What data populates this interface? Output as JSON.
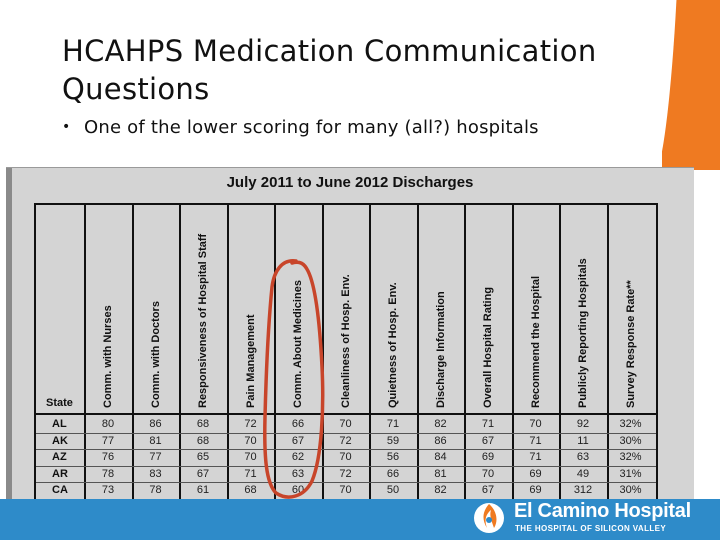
{
  "slide": {
    "title": "HCAHPS Medication Communication Questions",
    "bullet": "One of the lower scoring for many (all?) hospitals"
  },
  "table": {
    "title": "July 2011 to June 2012 Discharges",
    "state_header": "State",
    "headers": [
      "Comm. with Nurses",
      "Comm. with Doctors",
      "Responsiveness of Hospital Staff",
      "Pain Management",
      "Comm. About Medicines",
      "Cleanliness of Hosp. Env.",
      "Quietness of Hosp. Env.",
      "Discharge Information",
      "Overall Hospital Rating",
      "Recommend the Hospital",
      "Publicly Reporting Hospitals",
      "Survey Response Rate**"
    ],
    "rows": [
      {
        "state": "AL",
        "values": [
          "80",
          "86",
          "68",
          "72",
          "66",
          "70",
          "71",
          "82",
          "71",
          "70",
          "92",
          "32%"
        ]
      },
      {
        "state": "AK",
        "values": [
          "77",
          "81",
          "68",
          "70",
          "67",
          "72",
          "59",
          "86",
          "67",
          "71",
          "11",
          "30%"
        ]
      },
      {
        "state": "AZ",
        "values": [
          "76",
          "77",
          "65",
          "70",
          "62",
          "70",
          "56",
          "84",
          "69",
          "71",
          "63",
          "32%"
        ]
      },
      {
        "state": "AR",
        "values": [
          "78",
          "83",
          "67",
          "71",
          "63",
          "72",
          "66",
          "81",
          "70",
          "69",
          "49",
          "31%"
        ]
      },
      {
        "state": "CA",
        "values": [
          "73",
          "78",
          "61",
          "68",
          "60",
          "70",
          "50",
          "82",
          "67",
          "69",
          "312",
          "30%"
        ]
      }
    ]
  },
  "footer": {
    "brand_color": "#2e8bc9",
    "accent_color": "#ef7a21",
    "logo_name": "El Camino Hospital",
    "logo_tagline": "THE HOSPITAL OF SILICON VALLEY",
    "logo_icon": "el-camino-flame-icon"
  },
  "annotation": {
    "color": "#c8452a",
    "shape": "hand-drawn-oval"
  }
}
